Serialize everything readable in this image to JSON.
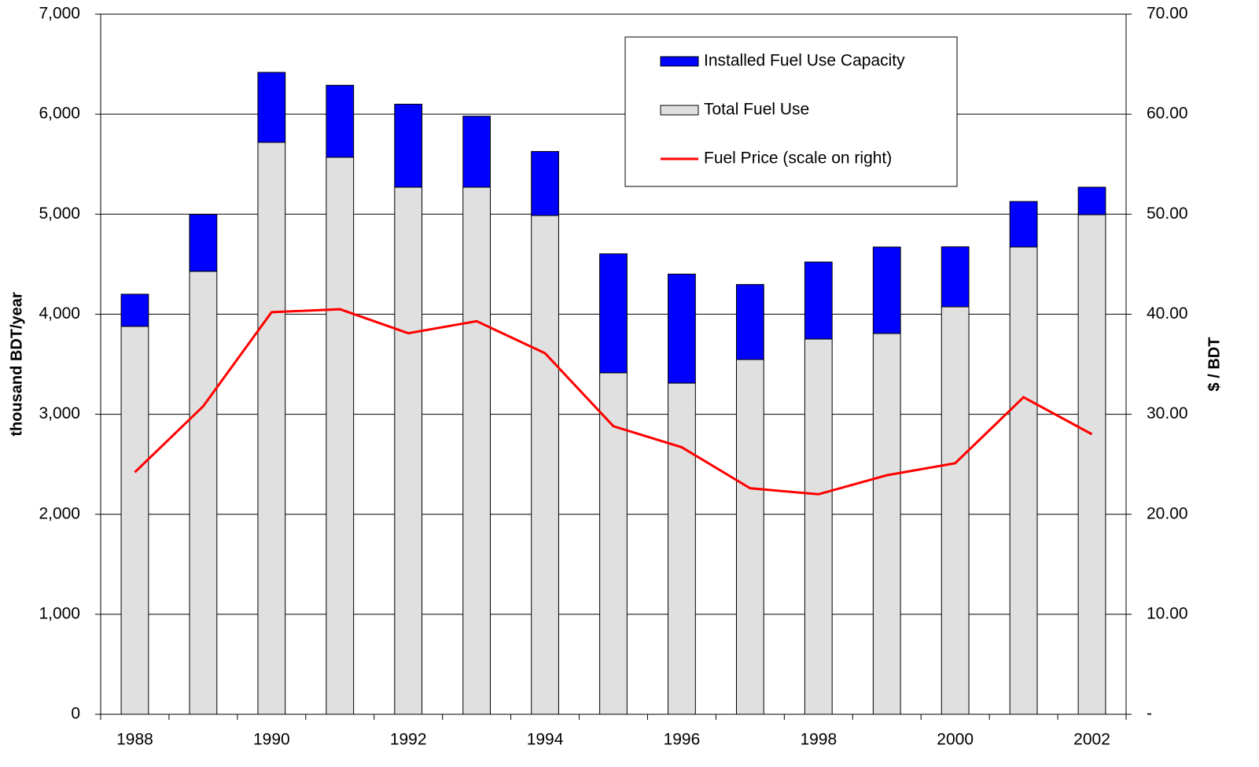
{
  "chart_data": {
    "type": "bar",
    "stacked": true,
    "categories": [
      "1988",
      null,
      "1990",
      null,
      "1992",
      null,
      "1994",
      null,
      "1996",
      null,
      "1998",
      null,
      "2000",
      null,
      "2002"
    ],
    "series": [
      {
        "name": "Total Fuel Use",
        "color": "#e0e0e0",
        "values": [
          3878,
          4428,
          5718,
          5569,
          5270,
          5270,
          4987,
          3414,
          3311,
          3547,
          3752,
          3807,
          4074,
          4672,
          4995
        ]
      },
      {
        "name": "Installed Fuel Use Capacity",
        "color": "#0000ff",
        "values": [
          322,
          570,
          700,
          720,
          830,
          710,
          640,
          1190,
          1090,
          750,
          770,
          865,
          600,
          455,
          275
        ]
      },
      {
        "name": "Fuel Price (scale on right)",
        "color": "#ff0000",
        "type": "line",
        "axis": "y2",
        "values": [
          24.2,
          30.8,
          40.2,
          40.5,
          38.1,
          39.3,
          36.1,
          28.8,
          26.7,
          22.6,
          22.0,
          23.9,
          25.1,
          31.7,
          28.0
        ]
      }
    ],
    "ylabel": "thousand BDT/year",
    "y2label": "$ / BDT",
    "ylim": [
      0,
      7000
    ],
    "yticks": [
      0,
      {
        "value": 1000,
        "label": "1,000"
      },
      {
        "value": 2000,
        "label": "2,000"
      },
      {
        "value": 3000,
        "label": "3,000"
      },
      {
        "value": 4000,
        "label": "4,000"
      },
      {
        "value": 5000,
        "label": "5,000"
      },
      {
        "value": 6000,
        "label": "6,000"
      },
      {
        "value": 7000,
        "label": "7,000"
      }
    ],
    "y2lim": [
      0,
      70
    ],
    "y2ticks": [
      {
        "value": 0,
        "label": "-"
      },
      {
        "value": 10,
        "label": "10.00"
      },
      {
        "value": 20,
        "label": "20.00"
      },
      {
        "value": 30,
        "label": "30.00"
      },
      {
        "value": 40,
        "label": "40.00"
      },
      {
        "value": 50,
        "label": "50.00"
      },
      {
        "value": 60,
        "label": "60.00"
      },
      {
        "value": 70,
        "label": "70.00"
      }
    ],
    "grid": true,
    "legend": "upper right"
  }
}
